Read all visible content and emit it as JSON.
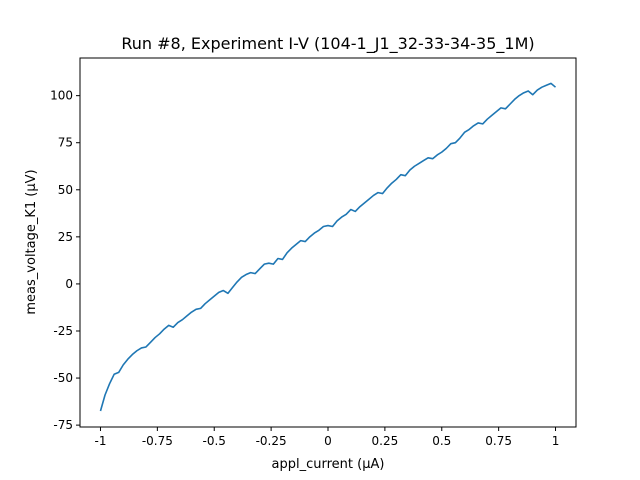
{
  "chart_data": {
    "type": "line",
    "title": "Run #8, Experiment I-V (104-1_J1_32-33-34-35_1M)",
    "xlabel": "appl_current (μA)",
    "ylabel": "meas_voltage_K1 (μV)",
    "xlim": [
      -1.09,
      1.09
    ],
    "ylim": [
      -76,
      120
    ],
    "x_ticks": [
      -1,
      -0.75,
      -0.5,
      -0.25,
      0,
      0.25,
      0.5,
      0.75,
      1
    ],
    "x_tick_labels": [
      "-1",
      "-0.75",
      "-0.5",
      "-0.25",
      "0",
      "0.25",
      "0.5",
      "0.75",
      "1"
    ],
    "y_ticks": [
      -75,
      -50,
      -25,
      0,
      25,
      50,
      75,
      100
    ],
    "y_tick_labels": [
      "-75",
      "-50",
      "-25",
      "0",
      "25",
      "50",
      "75",
      "100"
    ],
    "grid": false,
    "line_color": "#1f77b4",
    "series": [
      {
        "x": [
          -1.0,
          -0.98,
          -0.96,
          -0.94,
          -0.92,
          -0.9,
          -0.88,
          -0.86,
          -0.84,
          -0.82,
          -0.8,
          -0.78,
          -0.76,
          -0.74,
          -0.72,
          -0.7,
          -0.68,
          -0.66,
          -0.64,
          -0.62,
          -0.6,
          -0.58,
          -0.56,
          -0.54,
          -0.52,
          -0.5,
          -0.48,
          -0.46,
          -0.44,
          -0.42,
          -0.4,
          -0.38,
          -0.36,
          -0.34,
          -0.32,
          -0.3,
          -0.28,
          -0.26,
          -0.24,
          -0.22,
          -0.2,
          -0.18,
          -0.16,
          -0.14,
          -0.12,
          -0.1,
          -0.08,
          -0.06,
          -0.04,
          -0.02,
          0.0,
          0.02,
          0.04,
          0.06,
          0.08,
          0.1,
          0.12,
          0.14,
          0.16,
          0.18,
          0.2,
          0.22,
          0.24,
          0.26,
          0.28,
          0.3,
          0.32,
          0.34,
          0.36,
          0.38,
          0.4,
          0.42,
          0.44,
          0.46,
          0.48,
          0.5,
          0.52,
          0.54,
          0.56,
          0.58,
          0.6,
          0.62,
          0.64,
          0.66,
          0.68,
          0.7,
          0.72,
          0.74,
          0.76,
          0.78,
          0.8,
          0.82,
          0.84,
          0.86,
          0.88,
          0.9,
          0.92,
          0.94,
          0.96,
          0.98,
          1.0
        ],
        "values": [
          -67.5,
          -59,
          -53,
          -48,
          -47,
          -43,
          -40,
          -37.5,
          -35.5,
          -34,
          -33.5,
          -31,
          -28.5,
          -26.5,
          -24,
          -22,
          -23,
          -20.5,
          -19,
          -17,
          -15,
          -13.5,
          -13,
          -10.5,
          -8.5,
          -6.5,
          -4.5,
          -3.5,
          -5,
          -2,
          1,
          3.5,
          5,
          6,
          5.5,
          8,
          10.5,
          11,
          10.5,
          13.5,
          13,
          16.5,
          19,
          21,
          23,
          22.5,
          25,
          27,
          28.5,
          30.5,
          31,
          30.5,
          33.5,
          35.5,
          37,
          39.5,
          38.5,
          41,
          43,
          45,
          47,
          48.5,
          48,
          51,
          53.5,
          55.5,
          58,
          57.5,
          60.5,
          62.5,
          64,
          65.5,
          67,
          66.5,
          68.5,
          70,
          72,
          74.5,
          75,
          77.5,
          80.5,
          82,
          84,
          85.5,
          85,
          87.5,
          89.5,
          91.5,
          93.5,
          93,
          95.5,
          98,
          100,
          101.5,
          102.5,
          100.5,
          103,
          104.5,
          105.5,
          106.5,
          104.5
        ]
      }
    ]
  }
}
